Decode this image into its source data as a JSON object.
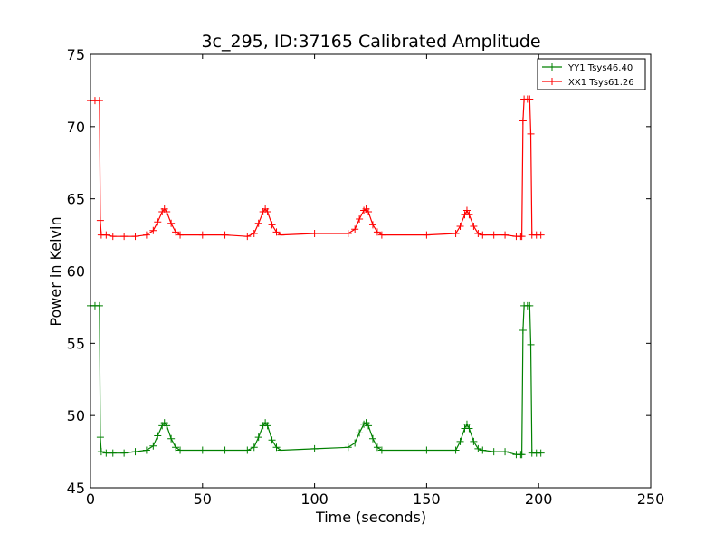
{
  "chart_data": {
    "type": "line",
    "title": "3c_295, ID:37165 Calibrated Amplitude",
    "xlabel": "Time (seconds)",
    "ylabel": "Power in Kelvin",
    "xlim": [
      0,
      250
    ],
    "ylim": [
      45,
      75
    ],
    "xticks": [
      "0",
      "50",
      "100",
      "150",
      "200",
      "250"
    ],
    "yticks": [
      "45",
      "50",
      "55",
      "60",
      "65",
      "70",
      "75"
    ],
    "grid": false,
    "legend_position": "top-right",
    "marker": "+",
    "series": [
      {
        "name": "YY1 Tsys46.40",
        "color": "#008000",
        "points": [
          [
            0,
            57.6
          ],
          [
            2,
            57.6
          ],
          [
            4,
            57.6
          ],
          [
            4.4,
            48.5
          ],
          [
            4.8,
            47.5
          ],
          [
            7,
            47.4
          ],
          [
            10,
            47.4
          ],
          [
            15,
            47.4
          ],
          [
            20,
            47.5
          ],
          [
            25,
            47.6
          ],
          [
            28,
            47.9
          ],
          [
            30,
            48.6
          ],
          [
            32,
            49.3
          ],
          [
            33,
            49.5
          ],
          [
            34,
            49.3
          ],
          [
            36,
            48.4
          ],
          [
            38,
            47.8
          ],
          [
            40,
            47.6
          ],
          [
            50,
            47.6
          ],
          [
            60,
            47.6
          ],
          [
            70,
            47.6
          ],
          [
            73,
            47.8
          ],
          [
            75,
            48.5
          ],
          [
            77,
            49.3
          ],
          [
            78,
            49.5
          ],
          [
            79,
            49.3
          ],
          [
            81,
            48.3
          ],
          [
            83,
            47.8
          ],
          [
            85,
            47.6
          ],
          [
            100,
            47.7
          ],
          [
            115,
            47.8
          ],
          [
            118,
            48.1
          ],
          [
            120,
            48.8
          ],
          [
            122,
            49.4
          ],
          [
            123,
            49.5
          ],
          [
            124,
            49.3
          ],
          [
            126,
            48.4
          ],
          [
            128,
            47.8
          ],
          [
            130,
            47.6
          ],
          [
            150,
            47.6
          ],
          [
            163,
            47.6
          ],
          [
            165,
            48.2
          ],
          [
            167,
            49.1
          ],
          [
            168,
            49.4
          ],
          [
            169,
            49.1
          ],
          [
            171,
            48.2
          ],
          [
            173,
            47.7
          ],
          [
            175,
            47.6
          ],
          [
            180,
            47.5
          ],
          [
            185,
            47.5
          ],
          [
            190,
            47.3
          ],
          [
            192,
            47.3
          ],
          [
            192.5,
            47.3
          ],
          [
            193,
            55.9
          ],
          [
            193.5,
            57.6
          ],
          [
            195,
            57.6
          ],
          [
            196,
            57.6
          ],
          [
            196.5,
            54.9
          ],
          [
            197,
            47.4
          ],
          [
            199,
            47.4
          ],
          [
            201,
            47.4
          ]
        ]
      },
      {
        "name": "XX1 Tsys61.26",
        "color": "#ff0000",
        "points": [
          [
            0,
            71.8
          ],
          [
            2,
            71.8
          ],
          [
            4,
            71.8
          ],
          [
            4.4,
            63.5
          ],
          [
            4.8,
            62.5
          ],
          [
            7,
            62.5
          ],
          [
            10,
            62.4
          ],
          [
            15,
            62.4
          ],
          [
            20,
            62.4
          ],
          [
            25,
            62.5
          ],
          [
            28,
            62.8
          ],
          [
            30,
            63.4
          ],
          [
            32,
            64.1
          ],
          [
            33,
            64.3
          ],
          [
            34,
            64.1
          ],
          [
            36,
            63.3
          ],
          [
            38,
            62.7
          ],
          [
            40,
            62.5
          ],
          [
            50,
            62.5
          ],
          [
            60,
            62.5
          ],
          [
            70,
            62.4
          ],
          [
            73,
            62.6
          ],
          [
            75,
            63.3
          ],
          [
            77,
            64.1
          ],
          [
            78,
            64.3
          ],
          [
            79,
            64.1
          ],
          [
            81,
            63.2
          ],
          [
            83,
            62.7
          ],
          [
            85,
            62.5
          ],
          [
            100,
            62.6
          ],
          [
            115,
            62.6
          ],
          [
            118,
            62.9
          ],
          [
            120,
            63.6
          ],
          [
            122,
            64.2
          ],
          [
            123,
            64.3
          ],
          [
            124,
            64.1
          ],
          [
            126,
            63.2
          ],
          [
            128,
            62.7
          ],
          [
            130,
            62.5
          ],
          [
            150,
            62.5
          ],
          [
            163,
            62.6
          ],
          [
            165,
            63.1
          ],
          [
            167,
            63.9
          ],
          [
            168,
            64.2
          ],
          [
            169,
            63.9
          ],
          [
            171,
            63.1
          ],
          [
            173,
            62.6
          ],
          [
            175,
            62.5
          ],
          [
            180,
            62.5
          ],
          [
            185,
            62.5
          ],
          [
            190,
            62.4
          ],
          [
            192,
            62.4
          ],
          [
            192.5,
            62.4
          ],
          [
            193,
            70.4
          ],
          [
            193.5,
            71.9
          ],
          [
            195,
            71.9
          ],
          [
            196,
            71.9
          ],
          [
            196.5,
            69.5
          ],
          [
            197,
            62.5
          ],
          [
            199,
            62.5
          ],
          [
            201,
            62.5
          ]
        ]
      }
    ]
  }
}
